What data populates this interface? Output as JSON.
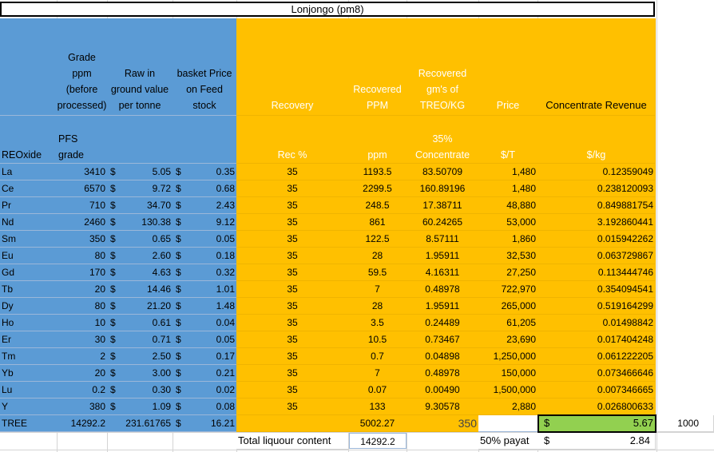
{
  "title": "Lonjongo (pm8)",
  "headers": {
    "grade": "Grade ppm (before processed)",
    "raw": "Raw in ground value per tonne",
    "basket": "basket Price on Feed stock",
    "recovery": "Recovery",
    "rec_ppm": "Recovered PPM",
    "rec_gms": "Recovered gm's of TREO/KG",
    "price": "Price",
    "revenue": "Concentrate Revenue"
  },
  "subheaders": {
    "oxide": "REOxide",
    "pfs": "PFS grade",
    "rec_pct": "Rec %",
    "ppm": "ppm",
    "conc": "35% Concentrate",
    "per_t": "$/T",
    "per_kg": "$/kg"
  },
  "currency_symbol": "$",
  "rows": [
    {
      "el": "La",
      "grade": "3410",
      "raw": "5.05",
      "basket": "0.35",
      "rec": "35",
      "ppm": "1193.5",
      "gms": "83.50709",
      "price": "1,480",
      "kg": "0.12359049"
    },
    {
      "el": "Ce",
      "grade": "6570",
      "raw": "9.72",
      "basket": "0.68",
      "rec": "35",
      "ppm": "2299.5",
      "gms": "160.89196",
      "price": "1,480",
      "kg": "0.238120093"
    },
    {
      "el": "Pr",
      "grade": "710",
      "raw": "34.70",
      "basket": "2.43",
      "rec": "35",
      "ppm": "248.5",
      "gms": "17.38711",
      "price": "48,880",
      "kg": "0.849881754"
    },
    {
      "el": "Nd",
      "grade": "2460",
      "raw": "130.38",
      "basket": "9.12",
      "rec": "35",
      "ppm": "861",
      "gms": "60.24265",
      "price": "53,000",
      "kg": "3.192860441"
    },
    {
      "el": "Sm",
      "grade": "350",
      "raw": "0.65",
      "basket": "0.05",
      "rec": "35",
      "ppm": "122.5",
      "gms": "8.57111",
      "price": "1,860",
      "kg": "0.015942262"
    },
    {
      "el": "Eu",
      "grade": "80",
      "raw": "2.60",
      "basket": "0.18",
      "rec": "35",
      "ppm": "28",
      "gms": "1.95911",
      "price": "32,530",
      "kg": "0.063729867"
    },
    {
      "el": "Gd",
      "grade": "170",
      "raw": "4.63",
      "basket": "0.32",
      "rec": "35",
      "ppm": "59.5",
      "gms": "4.16311",
      "price": "27,250",
      "kg": "0.113444746"
    },
    {
      "el": "Tb",
      "grade": "20",
      "raw": "14.46",
      "basket": "1.01",
      "rec": "35",
      "ppm": "7",
      "gms": "0.48978",
      "price": "722,970",
      "kg": "0.354094541"
    },
    {
      "el": "Dy",
      "grade": "80",
      "raw": "21.20",
      "basket": "1.48",
      "rec": "35",
      "ppm": "28",
      "gms": "1.95911",
      "price": "265,000",
      "kg": "0.519164299"
    },
    {
      "el": "Ho",
      "grade": "10",
      "raw": "0.61",
      "basket": "0.04",
      "rec": "35",
      "ppm": "3.5",
      "gms": "0.24489",
      "price": "61,205",
      "kg": "0.01498842"
    },
    {
      "el": "Er",
      "grade": "30",
      "raw": "0.71",
      "basket": "0.05",
      "rec": "35",
      "ppm": "10.5",
      "gms": "0.73467",
      "price": "23,690",
      "kg": "0.017404248"
    },
    {
      "el": "Tm",
      "grade": "2",
      "raw": "2.50",
      "basket": "0.17",
      "rec": "35",
      "ppm": "0.7",
      "gms": "0.04898",
      "price": "1,250,000",
      "kg": "0.061222205"
    },
    {
      "el": "Yb",
      "grade": "20",
      "raw": "3.00",
      "basket": "0.21",
      "rec": "35",
      "ppm": "7",
      "gms": "0.48978",
      "price": "150,000",
      "kg": "0.073466646"
    },
    {
      "el": "Lu",
      "grade": "0.2",
      "raw": "0.30",
      "basket": "0.02",
      "rec": "35",
      "ppm": "0.07",
      "gms": "0.00490",
      "price": "1,500,000",
      "kg": "0.007346665"
    },
    {
      "el": "Y",
      "grade": "380",
      "raw": "1.09",
      "basket": "0.08",
      "rec": "35",
      "ppm": "133",
      "gms": "9.30578",
      "price": "2,880",
      "kg": "0.026800633"
    }
  ],
  "tree": {
    "label": "TREE",
    "grade": "14292.2",
    "raw": "231.61765",
    "basket": "16.21",
    "ppm": "5002.27",
    "gms": "350",
    "total": "5.67",
    "side": "1000"
  },
  "footer": {
    "liquour_label": "Total liquour content",
    "liquour_value": "14292.2",
    "payable_label": "50% payat",
    "payable_value": "2.84"
  }
}
